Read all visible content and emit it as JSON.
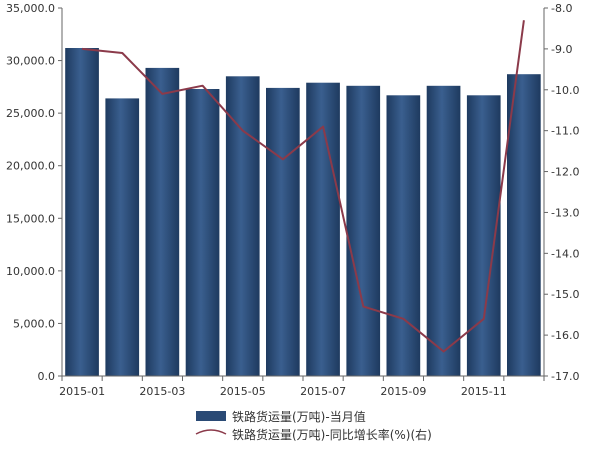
{
  "chart_data": {
    "type": "bar",
    "categories": [
      "2015-01",
      "2015-02",
      "2015-03",
      "2015-04",
      "2015-05",
      "2015-06",
      "2015-07",
      "2015-08",
      "2015-09",
      "2015-10",
      "2015-11",
      "2015-12"
    ],
    "x_tick_labels": [
      "2015-01",
      "2015-03",
      "2015-05",
      "2015-07",
      "2015-09",
      "2015-11"
    ],
    "series": [
      {
        "name": "铁路货运量(万吨)-当月值",
        "type": "bar",
        "axis": "left",
        "color": "#2a4a75",
        "values": [
          31200,
          26400,
          29300,
          27300,
          28500,
          27400,
          27900,
          27600,
          26700,
          27600,
          26700,
          28700
        ]
      },
      {
        "name": "铁路货运量(万吨)-同比增长率(%)(右)",
        "type": "line",
        "axis": "right",
        "color": "#8b3a4a",
        "values": [
          -9.0,
          -9.1,
          -10.1,
          -9.9,
          -11.0,
          -11.7,
          -10.9,
          -15.3,
          -15.6,
          -16.4,
          -15.6,
          -8.3
        ]
      }
    ],
    "y_left": {
      "lim": [
        0,
        35000
      ],
      "ticks": [
        0,
        5000,
        10000,
        15000,
        20000,
        25000,
        30000,
        35000
      ],
      "tick_labels": [
        "0.0",
        "5,000.0",
        "10,000.0",
        "15,000.0",
        "20,000.0",
        "25,000.0",
        "30,000.0",
        "35,000.0"
      ]
    },
    "y_right": {
      "lim": [
        -17,
        -8
      ],
      "ticks": [
        -8,
        -9,
        -10,
        -11,
        -12,
        -13,
        -14,
        -15,
        -16,
        -17
      ],
      "tick_labels": [
        "-8.0",
        "-9.0",
        "-10.0",
        "-11.0",
        "-12.0",
        "-13.0",
        "-14.0",
        "-15.0",
        "-16.0",
        "-17.0"
      ]
    },
    "grid": false,
    "legend": {
      "placement": "bottom"
    }
  }
}
